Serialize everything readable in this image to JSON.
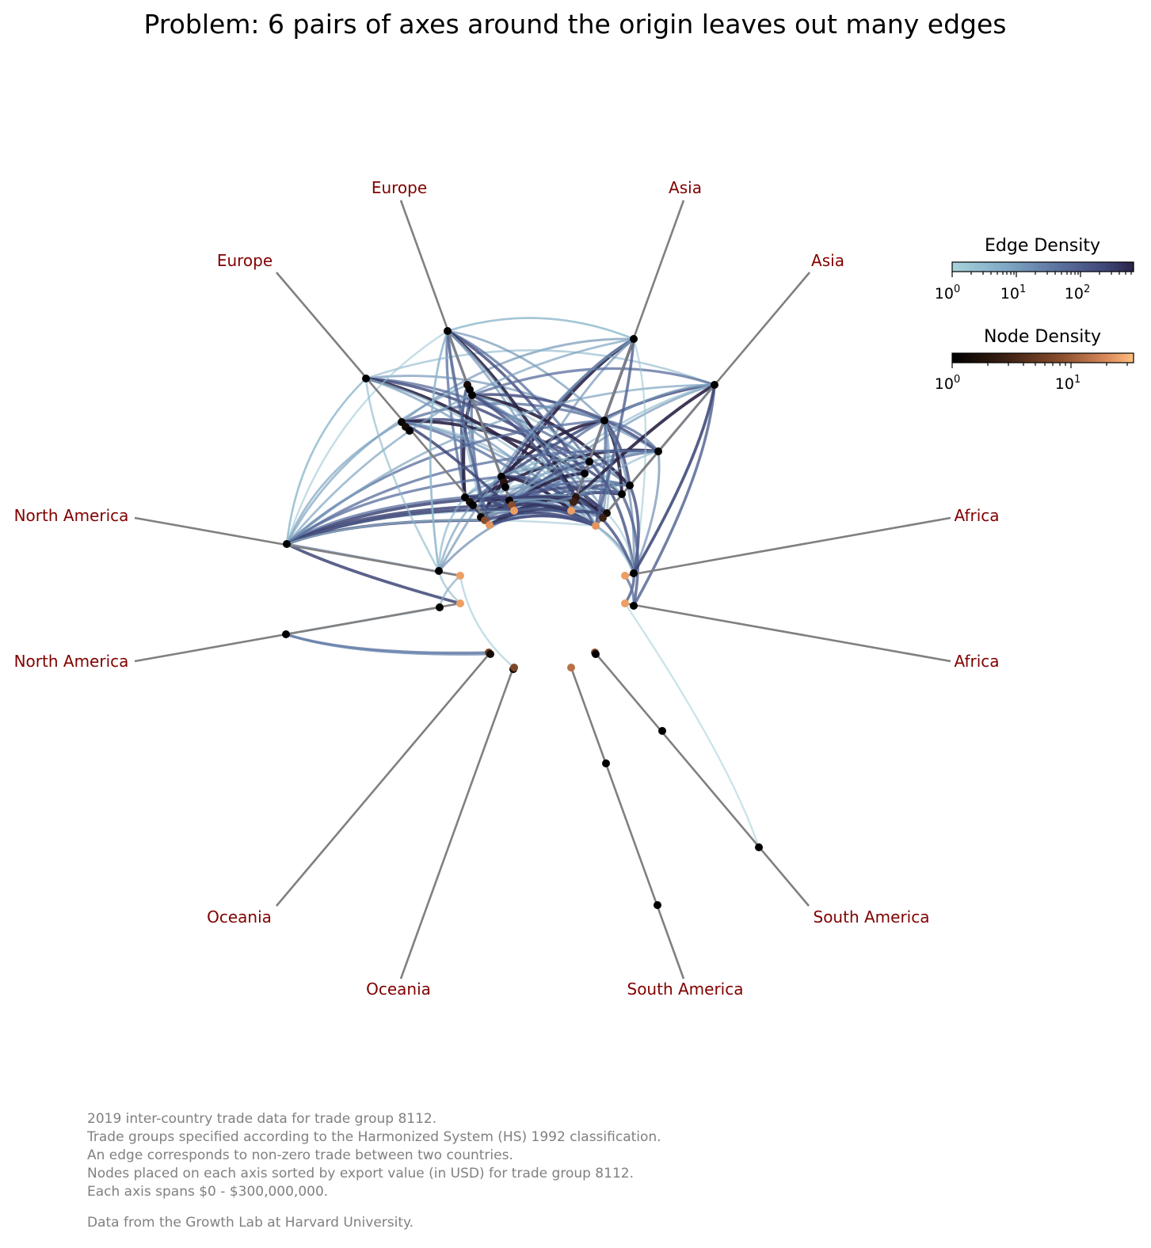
{
  "title": "Problem: 6 pairs of axes around the origin leaves out many edges",
  "axes": [
    {
      "label": "Europe"
    },
    {
      "label": "Europe"
    },
    {
      "label": "Asia"
    },
    {
      "label": "Asia"
    },
    {
      "label": "North America"
    },
    {
      "label": "North America"
    },
    {
      "label": "Africa"
    },
    {
      "label": "Africa"
    },
    {
      "label": "Oceania"
    },
    {
      "label": "Oceania"
    },
    {
      "label": "South America"
    },
    {
      "label": "South America"
    }
  ],
  "colorbars": {
    "edge": {
      "title": "Edge Density",
      "ticks": [
        {
          "base": "10",
          "exp": "0"
        },
        {
          "base": "10",
          "exp": "1"
        },
        {
          "base": "10",
          "exp": "2"
        }
      ],
      "colors": [
        "#a9d4dc",
        "#7fa8c4",
        "#5a6f9e",
        "#3e4677",
        "#2a2345"
      ]
    },
    "node": {
      "title": "Node Density",
      "ticks": [
        {
          "base": "10",
          "exp": "0"
        },
        {
          "base": "10",
          "exp": "1"
        }
      ],
      "colors": [
        "#000000",
        "#3d2114",
        "#8a4e2d",
        "#d98a5a",
        "#ffbf80"
      ]
    }
  },
  "footnote": [
    "2019 inter-country trade data for trade group 8112.",
    "Trade groups specified according to the Harmonized System (HS) 1992 classification.",
    "An edge corresponds to non-zero trade between two countries.",
    "Nodes placed on each axis sorted by export value (in USD) for trade group 8112.",
    "Each axis spans $0 - $300,000,000.",
    "",
    "Data from the Growth Lab at Harvard University."
  ],
  "colors": {
    "axis_line": "#808080",
    "axis_label": "#800000",
    "node_low": "#000000",
    "node_high": "#f7a86b",
    "edge_light": "#9cc8d4",
    "edge_dark": "#3e4677"
  }
}
